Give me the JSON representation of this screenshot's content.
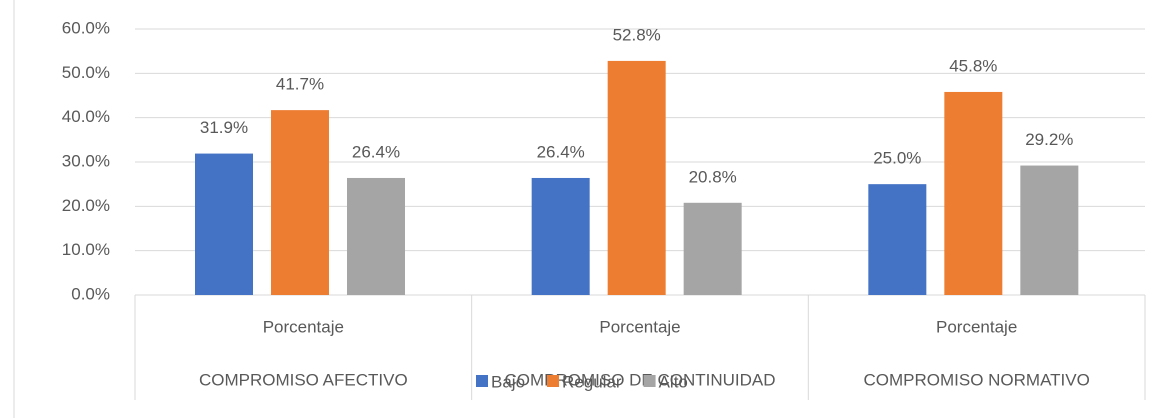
{
  "chart_data": {
    "type": "bar",
    "categories": [
      "Porcentaje",
      "Porcentaje",
      "Porcentaje"
    ],
    "category_groups": [
      "COMPROMISO AFECTIVO",
      "COMPROMISO DE CONTINUIDAD",
      "COMPROMISO NORMATIVO"
    ],
    "series": [
      {
        "name": "Bajo",
        "color": "#4472c4",
        "values": [
          31.9,
          26.4,
          25.0
        ],
        "value_labels": [
          "31.9%",
          "26.4%",
          "25.0%"
        ]
      },
      {
        "name": "Regular",
        "color": "#ed7d31",
        "values": [
          41.7,
          52.8,
          45.8
        ],
        "value_labels": [
          "41.7%",
          "52.8%",
          "45.8%"
        ]
      },
      {
        "name": "Alto",
        "color": "#a5a5a5",
        "values": [
          26.4,
          20.8,
          29.2
        ],
        "value_labels": [
          "26.4%",
          "20.8%",
          "29.2%"
        ]
      }
    ],
    "ylim": [
      0,
      60
    ],
    "yticks": [
      {
        "value": 0,
        "label": "0.0%"
      },
      {
        "value": 10,
        "label": "10.0%"
      },
      {
        "value": 20,
        "label": "20.0%"
      },
      {
        "value": 30,
        "label": "30.0%"
      },
      {
        "value": 40,
        "label": "40.0%"
      },
      {
        "value": 50,
        "label": "50.0%"
      },
      {
        "value": 60,
        "label": "60.0%"
      }
    ],
    "grid": true,
    "legend": "bottom"
  }
}
